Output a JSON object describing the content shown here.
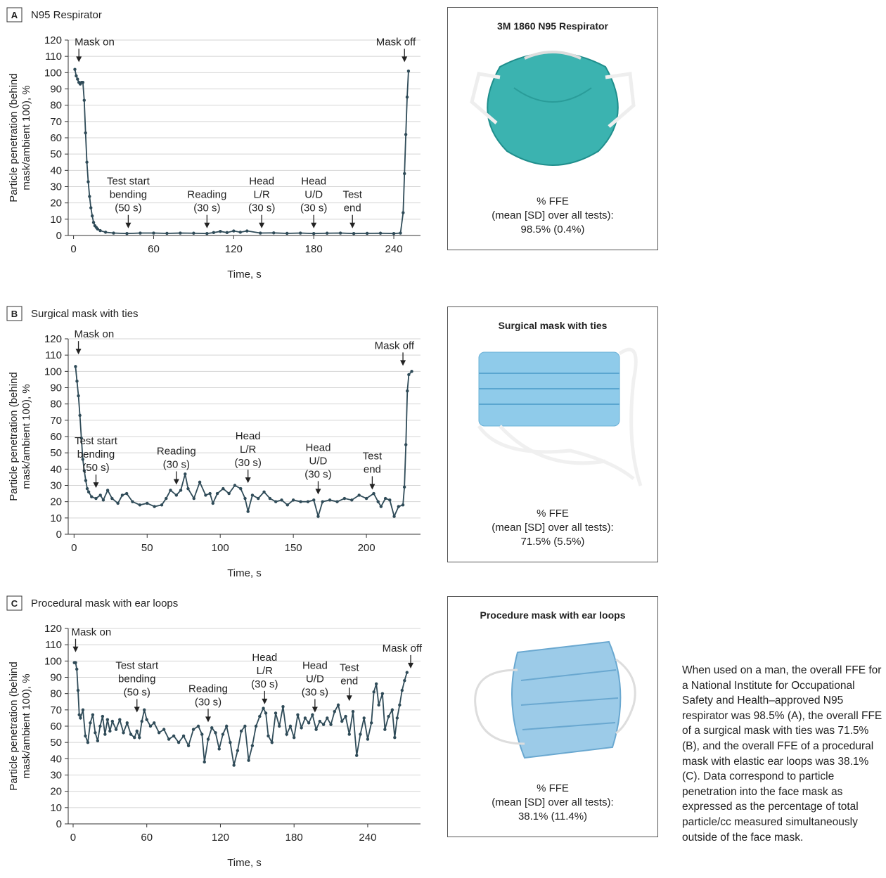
{
  "chart_data": [
    {
      "type": "line",
      "panel": "A",
      "title": "N95 Respirator",
      "ylabel": [
        "Particle penetration (behind",
        "mask/ambient 100), %"
      ],
      "xlabel": "Time, s",
      "xlim": [
        -4,
        260
      ],
      "xticks": [
        0,
        60,
        120,
        180,
        240
      ],
      "ylim": [
        0,
        120
      ],
      "yticks": [
        0,
        10,
        20,
        30,
        40,
        50,
        60,
        70,
        80,
        90,
        100,
        110,
        120
      ],
      "grid": true,
      "color": "#2f4b58",
      "x": [
        1,
        2,
        3,
        4,
        5,
        6,
        7,
        8,
        9,
        10,
        11,
        12,
        13,
        14,
        15,
        16,
        17,
        18,
        20,
        24,
        30,
        40,
        50,
        60,
        70,
        80,
        90,
        100,
        105,
        110,
        115,
        120,
        125,
        130,
        140,
        150,
        160,
        170,
        180,
        190,
        200,
        210,
        220,
        230,
        240,
        245,
        247,
        248,
        249,
        250,
        251
      ],
      "values": [
        102,
        98,
        96,
        94,
        93,
        94,
        94,
        83,
        63,
        45,
        33,
        24,
        17,
        12,
        8,
        6,
        5,
        4,
        3,
        2,
        1.5,
        1.2,
        1.5,
        1.5,
        1.3,
        1.5,
        1.4,
        1.2,
        1.8,
        2.5,
        1.8,
        2.8,
        2,
        2.8,
        1.5,
        1.6,
        1.3,
        1.5,
        1.2,
        1.4,
        1.5,
        1.2,
        1.3,
        1.4,
        1.2,
        1.5,
        14,
        38,
        62,
        85,
        101
      ],
      "annotations": [
        {
          "text": [
            "Mask on"
          ],
          "x": 4,
          "y": 106
        },
        {
          "text": [
            "Test start",
            "bending",
            "(50 s)"
          ],
          "x": 41,
          "y": 4
        },
        {
          "text": [
            "Reading",
            "(30 s)"
          ],
          "x": 100,
          "y": 4
        },
        {
          "text": [
            "Head",
            "L/R",
            "(30 s)"
          ],
          "x": 141,
          "y": 4
        },
        {
          "text": [
            "Head",
            "U/D",
            "(30 s)"
          ],
          "x": 180,
          "y": 4
        },
        {
          "text": [
            "Test",
            "end"
          ],
          "x": 209,
          "y": 4
        },
        {
          "text": [
            "Mask off"
          ],
          "x": 248,
          "y": 106
        }
      ]
    },
    {
      "type": "line",
      "panel": "B",
      "title": "Surgical mask with ties",
      "ylabel": [
        "Particle penetration (behind",
        "mask/ambient 100), %"
      ],
      "xlabel": "Time, s",
      "xlim": [
        -4,
        237
      ],
      "xticks": [
        0,
        50,
        100,
        150,
        200
      ],
      "ylim": [
        0,
        120
      ],
      "yticks": [
        0,
        10,
        20,
        30,
        40,
        50,
        60,
        70,
        80,
        90,
        100,
        110,
        120
      ],
      "grid": true,
      "color": "#2f4b58",
      "x": [
        1,
        2,
        3,
        4,
        5,
        6,
        7,
        8,
        9,
        10,
        12,
        15,
        18,
        20,
        23,
        26,
        30,
        33,
        36,
        40,
        45,
        50,
        55,
        60,
        63,
        66,
        70,
        73,
        76,
        78,
        82,
        86,
        90,
        93,
        95,
        98,
        102,
        106,
        110,
        114,
        117,
        119,
        122,
        126,
        130,
        134,
        138,
        142,
        146,
        150,
        155,
        160,
        164,
        167,
        170,
        175,
        180,
        185,
        190,
        195,
        200,
        205,
        208,
        210,
        213,
        216,
        219,
        222,
        225,
        226,
        227,
        228,
        229,
        231
      ],
      "values": [
        103,
        94,
        85,
        73,
        59,
        46,
        39,
        33,
        28,
        26,
        23,
        22,
        24,
        21,
        27,
        22,
        19,
        24,
        25,
        20,
        18,
        19,
        17,
        18,
        22,
        27,
        24,
        27,
        37,
        28,
        22,
        32,
        24,
        25,
        19,
        25,
        28,
        25,
        30,
        28,
        22,
        14,
        24,
        22,
        26,
        22,
        20,
        21,
        18,
        21,
        20,
        20,
        21,
        11,
        20,
        21,
        20,
        22,
        21,
        24,
        22,
        25,
        20,
        17,
        22,
        21,
        11,
        17,
        18,
        29,
        55,
        88,
        98,
        100
      ],
      "annotations": [
        {
          "text": [
            "Mask on"
          ],
          "x": 3,
          "y": 110
        },
        {
          "text": [
            "Test start",
            "bending",
            "(50 s)"
          ],
          "x": 15,
          "y": 28
        },
        {
          "text": [
            "Reading",
            "(30 s)"
          ],
          "x": 70,
          "y": 30
        },
        {
          "text": [
            "Head",
            "L/R",
            "(30 s)"
          ],
          "x": 119,
          "y": 31
        },
        {
          "text": [
            "Head",
            "U/D",
            "(30 s)"
          ],
          "x": 167,
          "y": 24
        },
        {
          "text": [
            "Test",
            "end"
          ],
          "x": 204,
          "y": 27
        },
        {
          "text": [
            "Mask off"
          ],
          "x": 225,
          "y": 103
        }
      ]
    },
    {
      "type": "line",
      "panel": "C",
      "title": "Procedural mask with ear loops",
      "ylabel": [
        "Particle penetration (behind",
        "mask/ambient 100), %"
      ],
      "xlabel": "Time, s",
      "xlim": [
        -4,
        283
      ],
      "xticks": [
        0,
        60,
        120,
        180,
        240
      ],
      "ylim": [
        0,
        120
      ],
      "yticks": [
        0,
        10,
        20,
        30,
        40,
        50,
        60,
        70,
        80,
        90,
        100,
        110,
        120
      ],
      "grid": true,
      "color": "#2f4b58",
      "x": [
        1,
        2,
        3,
        4,
        5,
        6,
        8,
        10,
        12,
        14,
        16,
        18,
        20,
        22,
        24,
        26,
        28,
        30,
        32,
        35,
        38,
        41,
        44,
        47,
        50,
        52,
        54,
        56,
        58,
        60,
        63,
        66,
        70,
        74,
        78,
        82,
        86,
        90,
        94,
        98,
        102,
        105,
        107,
        110,
        113,
        116,
        119,
        122,
        125,
        128,
        131,
        134,
        137,
        140,
        143,
        146,
        149,
        152,
        155,
        157,
        159,
        162,
        165,
        168,
        171,
        174,
        177,
        180,
        183,
        186,
        189,
        192,
        195,
        198,
        201,
        204,
        207,
        210,
        213,
        216,
        219,
        222,
        225,
        228,
        231,
        234,
        237,
        240,
        243,
        245,
        247,
        249,
        252,
        254,
        257,
        260,
        262,
        264,
        266,
        268,
        270,
        272
      ],
      "values": [
        99,
        99,
        95,
        82,
        67,
        65,
        70,
        54,
        50,
        62,
        67,
        56,
        51,
        60,
        66,
        55,
        64,
        57,
        63,
        58,
        64,
        56,
        62,
        55,
        53,
        57,
        53,
        63,
        70,
        64,
        60,
        62,
        56,
        58,
        52,
        54,
        50,
        54,
        48,
        58,
        60,
        55,
        38,
        52,
        59,
        56,
        46,
        55,
        60,
        50,
        36,
        45,
        57,
        60,
        39,
        48,
        60,
        66,
        71,
        68,
        54,
        50,
        68,
        60,
        72,
        55,
        60,
        53,
        67,
        59,
        65,
        62,
        67,
        58,
        63,
        61,
        65,
        61,
        69,
        73,
        63,
        66,
        55,
        69,
        42,
        55,
        65,
        52,
        62,
        81,
        86,
        73,
        80,
        58,
        66,
        70,
        53,
        65,
        73,
        82,
        88,
        93
      ],
      "annotations": [
        {
          "text": [
            "Mask on"
          ],
          "x": 2,
          "y": 105
        },
        {
          "text": [
            "Test start",
            "bending",
            "(50 s)"
          ],
          "x": 52,
          "y": 68
        },
        {
          "text": [
            "Reading",
            "(30 s)"
          ],
          "x": 110,
          "y": 62
        },
        {
          "text": [
            "Head",
            "L/R",
            "(30 s)"
          ],
          "x": 156,
          "y": 73
        },
        {
          "text": [
            "Head",
            "U/D",
            "(30 s)"
          ],
          "x": 197,
          "y": 68
        },
        {
          "text": [
            "Test",
            "end"
          ],
          "x": 225,
          "y": 75
        },
        {
          "text": [
            "Mask off"
          ],
          "x": 275,
          "y": 95
        }
      ]
    }
  ],
  "mask_cards": [
    {
      "title": "3M 1860 N95 Respirator",
      "ffe_label": "% FFE",
      "sd_label": "(mean [SD] over all tests):",
      "value": "98.5% (0.4%)"
    },
    {
      "title": "Surgical mask with ties",
      "ffe_label": "% FFE",
      "sd_label": "(mean [SD] over all tests):",
      "value": "71.5% (5.5%)"
    },
    {
      "title": "Procedure mask with ear loops",
      "ffe_label": "% FFE",
      "sd_label": "(mean [SD] over all tests):",
      "value": "38.1% (11.4%)"
    }
  ],
  "caption": "When used on a man, the overall FFE for a National Institute for Occupational Safety and Health–approved N95 respirator was 98.5% (A), the overall FFE of a surgical mask with ties was 71.5% (B), and the overall FFE of a procedural mask with elastic ear loops was 38.1% (C). Data correspond to particle penetration into the face mask as expressed as the percentage of total particle/cc measured simultaneously outside of the face mask."
}
